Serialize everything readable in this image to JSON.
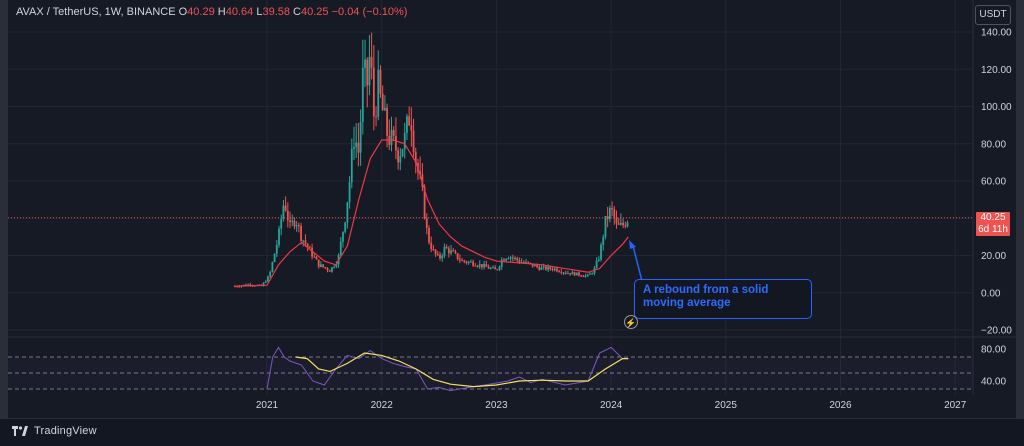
{
  "legend": {
    "symbol": "AVAX / TetherUS, 1W, BINANCE",
    "o_label": "O",
    "o_value": "40.29",
    "h_label": "H",
    "h_value": "40.64",
    "l_label": "L",
    "l_value": "39.58",
    "c_label": "C",
    "c_value": "40.25",
    "change": "−0.04 (−0.10%)"
  },
  "currency_button": "USDT",
  "price_tag": {
    "price": "40.25",
    "countdown": "6d 11h"
  },
  "annotation": {
    "line1": "A rebound from a solid",
    "line2": "moving average"
  },
  "brand": "TradingView",
  "colors": {
    "up": "#26a69a",
    "down": "#ef5350",
    "ma": "#f23645",
    "rsi": "#7e57c2",
    "rsi_ma": "#f7e25a",
    "annotation": "#2962ff"
  },
  "chart_data": [
    {
      "type": "candlestick",
      "title": "AVAX / TetherUS, 1W, BINANCE",
      "y_ticks": [
        "140.00",
        "120.00",
        "100.00",
        "80.00",
        "60.00",
        "40.00",
        "20.00",
        "0.00",
        "−20.00"
      ],
      "x_ticks": [
        "2021",
        "2022",
        "2023",
        "2024",
        "2025",
        "2026",
        "2027"
      ],
      "ylim": [
        -20,
        150
      ],
      "last_price": 40.25,
      "price_points": [
        [
          2020.72,
          3.5
        ],
        [
          2020.85,
          4.5
        ],
        [
          2020.95,
          3.5
        ],
        [
          2021.02,
          9
        ],
        [
          2021.1,
          30
        ],
        [
          2021.15,
          50
        ],
        [
          2021.2,
          35
        ],
        [
          2021.25,
          40
        ],
        [
          2021.3,
          30
        ],
        [
          2021.35,
          25
        ],
        [
          2021.45,
          15
        ],
        [
          2021.55,
          12
        ],
        [
          2021.62,
          18
        ],
        [
          2021.68,
          40
        ],
        [
          2021.72,
          60
        ],
        [
          2021.76,
          85
        ],
        [
          2021.8,
          75
        ],
        [
          2021.84,
          120
        ],
        [
          2021.87,
          110
        ],
        [
          2021.9,
          130
        ],
        [
          2021.93,
          95
        ],
        [
          2021.97,
          110
        ],
        [
          2022.0,
          100
        ],
        [
          2022.05,
          85
        ],
        [
          2022.1,
          80
        ],
        [
          2022.15,
          75
        ],
        [
          2022.2,
          82
        ],
        [
          2022.25,
          98
        ],
        [
          2022.3,
          70
        ],
        [
          2022.35,
          55
        ],
        [
          2022.4,
          30
        ],
        [
          2022.45,
          22
        ],
        [
          2022.5,
          18
        ],
        [
          2022.55,
          24
        ],
        [
          2022.6,
          22
        ],
        [
          2022.7,
          17
        ],
        [
          2022.8,
          16
        ],
        [
          2022.9,
          14
        ],
        [
          2023.0,
          12
        ],
        [
          2023.05,
          18
        ],
        [
          2023.1,
          20
        ],
        [
          2023.2,
          17
        ],
        [
          2023.3,
          15
        ],
        [
          2023.4,
          13
        ],
        [
          2023.5,
          13
        ],
        [
          2023.6,
          11
        ],
        [
          2023.7,
          10
        ],
        [
          2023.8,
          9
        ],
        [
          2023.85,
          12
        ],
        [
          2023.9,
          20
        ],
        [
          2023.95,
          38
        ],
        [
          2024.0,
          45
        ],
        [
          2024.05,
          35
        ],
        [
          2024.1,
          36
        ],
        [
          2024.15,
          40.25
        ]
      ],
      "moving_average": [
        [
          2020.72,
          3.5
        ],
        [
          2021.0,
          4
        ],
        [
          2021.1,
          15
        ],
        [
          2021.2,
          22
        ],
        [
          2021.3,
          27
        ],
        [
          2021.4,
          22
        ],
        [
          2021.5,
          17
        ],
        [
          2021.6,
          15
        ],
        [
          2021.7,
          25
        ],
        [
          2021.8,
          50
        ],
        [
          2021.9,
          72
        ],
        [
          2022.0,
          82
        ],
        [
          2022.1,
          82
        ],
        [
          2022.2,
          80
        ],
        [
          2022.3,
          70
        ],
        [
          2022.4,
          50
        ],
        [
          2022.5,
          37
        ],
        [
          2022.6,
          30
        ],
        [
          2022.7,
          25
        ],
        [
          2022.8,
          22
        ],
        [
          2022.9,
          19
        ],
        [
          2023.0,
          17
        ],
        [
          2023.2,
          16
        ],
        [
          2023.4,
          15
        ],
        [
          2023.6,
          13
        ],
        [
          2023.8,
          11
        ],
        [
          2023.9,
          13
        ],
        [
          2024.0,
          20
        ],
        [
          2024.1,
          26
        ],
        [
          2024.15,
          30
        ]
      ]
    },
    {
      "type": "line",
      "y_ticks": [
        "80.00",
        "40.00"
      ],
      "levels": [
        70,
        50,
        30
      ],
      "ylim": [
        30,
        88
      ],
      "series": [
        {
          "points": [
            [
              2021.0,
              30
            ],
            [
              2021.05,
              70
            ],
            [
              2021.1,
              82
            ],
            [
              2021.15,
              70
            ],
            [
              2021.2,
              65
            ],
            [
              2021.3,
              60
            ],
            [
              2021.4,
              40
            ],
            [
              2021.5,
              35
            ],
            [
              2021.6,
              55
            ],
            [
              2021.7,
              72
            ],
            [
              2021.8,
              68
            ],
            [
              2021.9,
              78
            ],
            [
              2022.0,
              68
            ],
            [
              2022.1,
              62
            ],
            [
              2022.2,
              58
            ],
            [
              2022.3,
              55
            ],
            [
              2022.4,
              30
            ],
            [
              2022.5,
              32
            ],
            [
              2022.6,
              28
            ],
            [
              2022.8,
              33
            ],
            [
              2022.9,
              35
            ],
            [
              2023.1,
              40
            ],
            [
              2023.2,
              45
            ],
            [
              2023.3,
              38
            ],
            [
              2023.4,
              42
            ],
            [
              2023.6,
              35
            ],
            [
              2023.8,
              40
            ],
            [
              2023.9,
              75
            ],
            [
              2024.0,
              82
            ],
            [
              2024.1,
              68
            ],
            [
              2024.15,
              68
            ]
          ]
        },
        {
          "points": [
            [
              2021.25,
              70
            ],
            [
              2021.35,
              68
            ],
            [
              2021.45,
              55
            ],
            [
              2021.55,
              52
            ],
            [
              2021.7,
              62
            ],
            [
              2021.85,
              75
            ],
            [
              2022.0,
              72
            ],
            [
              2022.15,
              65
            ],
            [
              2022.3,
              55
            ],
            [
              2022.45,
              42
            ],
            [
              2022.6,
              36
            ],
            [
              2022.8,
              33
            ],
            [
              2023.0,
              35
            ],
            [
              2023.2,
              40
            ],
            [
              2023.4,
              41
            ],
            [
              2023.6,
              40
            ],
            [
              2023.8,
              40
            ],
            [
              2023.95,
              55
            ],
            [
              2024.1,
              68
            ],
            [
              2024.15,
              68
            ]
          ]
        }
      ]
    }
  ]
}
